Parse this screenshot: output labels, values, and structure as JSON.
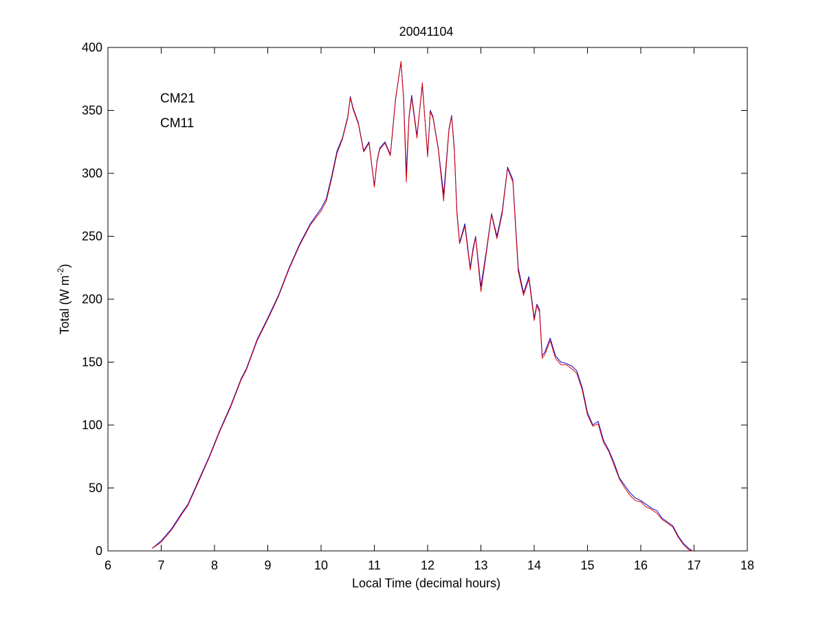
{
  "chart_data": {
    "type": "line",
    "title": "20041104",
    "xlabel": "Local Time (decimal hours)",
    "ylabel": {
      "base": "Total (W m",
      "sup": "-2",
      "close": ")"
    },
    "xlim": [
      6,
      18
    ],
    "ylim": [
      0,
      400
    ],
    "xticks": [
      6,
      7,
      8,
      9,
      10,
      11,
      12,
      13,
      14,
      15,
      16,
      17,
      18
    ],
    "yticks": [
      0,
      50,
      100,
      150,
      200,
      250,
      300,
      350,
      400
    ],
    "grid": false,
    "legend_position": "top-left",
    "series": [
      {
        "name": "CM21",
        "color": "#0000cc",
        "points": [
          [
            6.83,
            2
          ],
          [
            7.0,
            8
          ],
          [
            7.2,
            18
          ],
          [
            7.4,
            31
          ],
          [
            7.5,
            37
          ],
          [
            7.7,
            56
          ],
          [
            7.9,
            75
          ],
          [
            8.1,
            96
          ],
          [
            8.3,
            115
          ],
          [
            8.5,
            137
          ],
          [
            8.6,
            145
          ],
          [
            8.8,
            168
          ],
          [
            9.0,
            185
          ],
          [
            9.2,
            203
          ],
          [
            9.4,
            225
          ],
          [
            9.6,
            244
          ],
          [
            9.8,
            260
          ],
          [
            10.0,
            272
          ],
          [
            10.1,
            280
          ],
          [
            10.2,
            298
          ],
          [
            10.3,
            318
          ],
          [
            10.4,
            328
          ],
          [
            10.5,
            345
          ],
          [
            10.55,
            361
          ],
          [
            10.6,
            352
          ],
          [
            10.7,
            340
          ],
          [
            10.8,
            318
          ],
          [
            10.9,
            325
          ],
          [
            11.0,
            290
          ],
          [
            11.05,
            310
          ],
          [
            11.1,
            320
          ],
          [
            11.2,
            325
          ],
          [
            11.3,
            315
          ],
          [
            11.4,
            360
          ],
          [
            11.5,
            388
          ],
          [
            11.55,
            360
          ],
          [
            11.6,
            300
          ],
          [
            11.65,
            345
          ],
          [
            11.7,
            362
          ],
          [
            11.8,
            330
          ],
          [
            11.9,
            370
          ],
          [
            12.0,
            315
          ],
          [
            12.05,
            350
          ],
          [
            12.1,
            345
          ],
          [
            12.2,
            320
          ],
          [
            12.3,
            283
          ],
          [
            12.4,
            335
          ],
          [
            12.45,
            346
          ],
          [
            12.5,
            320
          ],
          [
            12.55,
            270
          ],
          [
            12.6,
            245
          ],
          [
            12.7,
            260
          ],
          [
            12.8,
            225
          ],
          [
            12.85,
            240
          ],
          [
            12.9,
            250
          ],
          [
            13.0,
            210
          ],
          [
            13.1,
            238
          ],
          [
            13.2,
            268
          ],
          [
            13.3,
            250
          ],
          [
            13.4,
            270
          ],
          [
            13.5,
            305
          ],
          [
            13.6,
            295
          ],
          [
            13.7,
            225
          ],
          [
            13.8,
            205
          ],
          [
            13.9,
            218
          ],
          [
            14.0,
            185
          ],
          [
            14.05,
            196
          ],
          [
            14.1,
            192
          ],
          [
            14.15,
            155
          ],
          [
            14.2,
            158
          ],
          [
            14.3,
            169
          ],
          [
            14.4,
            155
          ],
          [
            14.5,
            150
          ],
          [
            14.6,
            149
          ],
          [
            14.7,
            147
          ],
          [
            14.8,
            143
          ],
          [
            14.9,
            130
          ],
          [
            15.0,
            110
          ],
          [
            15.1,
            100
          ],
          [
            15.2,
            103
          ],
          [
            15.3,
            88
          ],
          [
            15.4,
            80
          ],
          [
            15.5,
            70
          ],
          [
            15.6,
            58
          ],
          [
            15.7,
            52
          ],
          [
            15.8,
            46
          ],
          [
            15.9,
            42
          ],
          [
            16.0,
            40
          ],
          [
            16.1,
            37
          ],
          [
            16.2,
            34
          ],
          [
            16.3,
            32
          ],
          [
            16.4,
            26
          ],
          [
            16.5,
            23
          ],
          [
            16.6,
            20
          ],
          [
            16.7,
            12
          ],
          [
            16.8,
            6
          ],
          [
            16.9,
            2
          ],
          [
            16.97,
            0
          ]
        ]
      },
      {
        "name": "CM11",
        "color": "#dd0000",
        "points": [
          [
            6.83,
            2
          ],
          [
            7.0,
            7
          ],
          [
            7.2,
            17
          ],
          [
            7.4,
            30
          ],
          [
            7.5,
            36
          ],
          [
            7.7,
            55
          ],
          [
            7.9,
            74
          ],
          [
            8.1,
            95
          ],
          [
            8.3,
            114
          ],
          [
            8.5,
            136
          ],
          [
            8.6,
            144
          ],
          [
            8.8,
            167
          ],
          [
            9.0,
            184
          ],
          [
            9.2,
            202
          ],
          [
            9.4,
            224
          ],
          [
            9.6,
            243
          ],
          [
            9.8,
            259
          ],
          [
            10.0,
            270
          ],
          [
            10.1,
            278
          ],
          [
            10.2,
            296
          ],
          [
            10.3,
            316
          ],
          [
            10.4,
            327
          ],
          [
            10.5,
            344
          ],
          [
            10.55,
            360
          ],
          [
            10.6,
            351
          ],
          [
            10.7,
            339
          ],
          [
            10.8,
            317
          ],
          [
            10.9,
            324
          ],
          [
            11.0,
            289
          ],
          [
            11.05,
            309
          ],
          [
            11.1,
            319
          ],
          [
            11.2,
            324
          ],
          [
            11.3,
            314
          ],
          [
            11.4,
            359
          ],
          [
            11.5,
            389
          ],
          [
            11.55,
            358
          ],
          [
            11.6,
            293
          ],
          [
            11.65,
            344
          ],
          [
            11.7,
            360
          ],
          [
            11.8,
            328
          ],
          [
            11.9,
            372
          ],
          [
            12.0,
            313
          ],
          [
            12.05,
            349
          ],
          [
            12.1,
            344
          ],
          [
            12.2,
            319
          ],
          [
            12.3,
            278
          ],
          [
            12.4,
            334
          ],
          [
            12.45,
            345
          ],
          [
            12.5,
            318
          ],
          [
            12.55,
            268
          ],
          [
            12.6,
            244
          ],
          [
            12.7,
            258
          ],
          [
            12.8,
            223
          ],
          [
            12.85,
            238
          ],
          [
            12.9,
            249
          ],
          [
            13.0,
            206
          ],
          [
            13.1,
            236
          ],
          [
            13.2,
            267
          ],
          [
            13.3,
            248
          ],
          [
            13.4,
            268
          ],
          [
            13.5,
            304
          ],
          [
            13.6,
            293
          ],
          [
            13.7,
            222
          ],
          [
            13.8,
            203
          ],
          [
            13.9,
            216
          ],
          [
            14.0,
            183
          ],
          [
            14.05,
            195
          ],
          [
            14.1,
            190
          ],
          [
            14.15,
            153
          ],
          [
            14.2,
            156
          ],
          [
            14.3,
            167
          ],
          [
            14.4,
            153
          ],
          [
            14.5,
            148
          ],
          [
            14.6,
            148
          ],
          [
            14.7,
            145
          ],
          [
            14.8,
            141
          ],
          [
            14.9,
            128
          ],
          [
            15.0,
            108
          ],
          [
            15.1,
            99
          ],
          [
            15.2,
            101
          ],
          [
            15.3,
            86
          ],
          [
            15.4,
            79
          ],
          [
            15.5,
            68
          ],
          [
            15.6,
            57
          ],
          [
            15.7,
            50
          ],
          [
            15.8,
            44
          ],
          [
            15.9,
            40
          ],
          [
            16.0,
            39
          ],
          [
            16.1,
            35
          ],
          [
            16.2,
            33
          ],
          [
            16.3,
            30
          ],
          [
            16.4,
            25
          ],
          [
            16.5,
            22
          ],
          [
            16.6,
            19
          ],
          [
            16.7,
            11
          ],
          [
            16.8,
            5
          ],
          [
            16.9,
            1
          ],
          [
            16.97,
            0
          ]
        ]
      }
    ]
  }
}
